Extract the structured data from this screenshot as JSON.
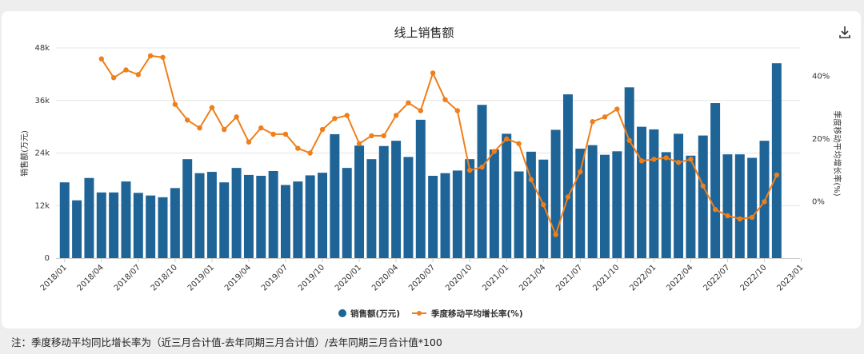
{
  "note": "注：季度移动平均同比增长率为（近三月合计值-去年同期三月合计值）/去年同期三月合计值*100",
  "colors": {
    "bar": "#1f6497",
    "line": "#ef7f1a",
    "grid": "#e6e6e6",
    "text": "#333333"
  },
  "chart_data": {
    "type": "bar+line",
    "title": "线上销售额",
    "ylabel_left": "销售额(万元)",
    "ylabel_right": "季度移动平均增长率(%)",
    "yticks_left": [
      "0",
      "12k",
      "24k",
      "36k",
      "48k"
    ],
    "ylim_left": [
      0,
      48000
    ],
    "yticks_right": [
      "0%",
      "20%",
      "40%"
    ],
    "ylim_right": [
      -18,
      49
    ],
    "xticks": [
      "2018/01",
      "2018/04",
      "2018/07",
      "2018/10",
      "2019/01",
      "2019/04",
      "2019/07",
      "2019/10",
      "2020/01",
      "2020/04",
      "2020/07",
      "2020/10",
      "2021/01",
      "2021/04",
      "2021/07",
      "2021/10",
      "2022/01",
      "2022/04",
      "2022/07",
      "2022/10",
      "2023/01"
    ],
    "legend": [
      "销售额(万元)",
      "季度移动平均增长率(%)"
    ],
    "legend_position": "bottom",
    "grid": true,
    "series": [
      {
        "name": "销售额(万元)",
        "type": "bar",
        "values": [
          17300,
          13200,
          18300,
          15000,
          15000,
          17500,
          14900,
          14300,
          13900,
          16000,
          22600,
          19400,
          19700,
          17300,
          20600,
          19000,
          18800,
          19900,
          16700,
          17500,
          18900,
          19500,
          28300,
          20600,
          25700,
          22600,
          25600,
          26800,
          23100,
          31600,
          18800,
          19400,
          20000,
          22600,
          35000,
          24800,
          28400,
          19800,
          24300,
          22500,
          29300,
          37400,
          25000,
          25800,
          23600,
          24400,
          39000,
          30000,
          29400,
          24200,
          28400,
          23400,
          28000,
          35400,
          23700,
          23700,
          22900,
          26800,
          44500
        ],
        "x_start": "2018/01"
      },
      {
        "name": "季度移动平均增长率(%)",
        "type": "line",
        "start_index": 3,
        "values": [
          45.5,
          39.5,
          42,
          40.5,
          46.5,
          46,
          31,
          26,
          23.5,
          30,
          23,
          27,
          19,
          23.5,
          21.5,
          21.5,
          17,
          15.5,
          23,
          26.5,
          27.5,
          18.5,
          21,
          21,
          27.5,
          31.5,
          29,
          41,
          32.5,
          29,
          10,
          11,
          16,
          20,
          18.5,
          7,
          -1,
          -10.5,
          1.5,
          9.5,
          25.5,
          27,
          29.5,
          19.5,
          13,
          13.5,
          14,
          12.5,
          13.5,
          5,
          -2.5,
          -4.5,
          -5.5,
          -5,
          0,
          8.5
        ]
      }
    ]
  }
}
